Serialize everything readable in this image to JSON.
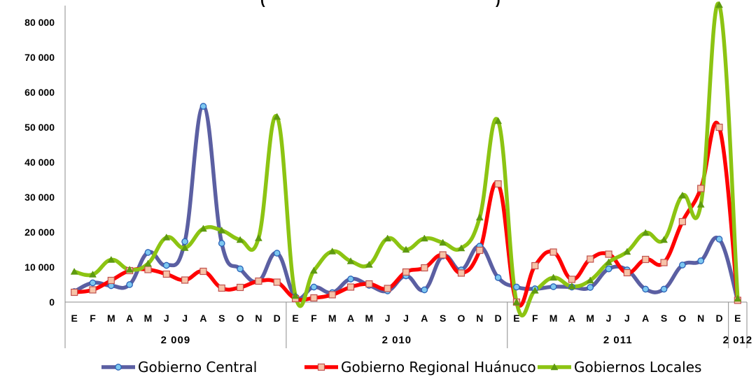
{
  "chart_data": {
    "type": "line",
    "title": "(",
    "title_right": ")",
    "xlabel": "",
    "ylabel": "",
    "ylim": [
      0,
      85000
    ],
    "yticks": [
      0,
      10000,
      20000,
      30000,
      40000,
      50000,
      60000,
      70000,
      80000
    ],
    "ytick_labels": [
      "0",
      "10 000",
      "20 000",
      "30 000",
      "40 000",
      "50 000",
      "60 000",
      "70 000",
      "80 000"
    ],
    "grid": false,
    "legend_position": "bottom",
    "years": [
      {
        "label": "2 009",
        "months": 12
      },
      {
        "label": "2 010",
        "months": 12
      },
      {
        "label": "2 011",
        "months": 12
      },
      {
        "label": "2 012",
        "months": 1
      }
    ],
    "categories": [
      "E",
      "F",
      "M",
      "A",
      "M",
      "J",
      "J",
      "A",
      "S",
      "O",
      "N",
      "D",
      "E",
      "F",
      "M",
      "A",
      "M",
      "J",
      "J",
      "A",
      "S",
      "O",
      "N",
      "D",
      "E",
      "F",
      "M",
      "A",
      "M",
      "J",
      "J",
      "A",
      "S",
      "O",
      "N",
      "D",
      "E"
    ],
    "series": [
      {
        "name": "Gobierno Central",
        "color": "#5B5FA2",
        "marker": "circle",
        "marker_color": "#7EC8F0",
        "values": [
          3000,
          5500,
          4700,
          5000,
          14200,
          10500,
          17300,
          56000,
          16800,
          9500,
          6000,
          14000,
          1500,
          4300,
          2700,
          6600,
          4800,
          3200,
          7500,
          3500,
          13200,
          9200,
          16000,
          7000,
          4300,
          3800,
          4400,
          4300,
          4200,
          9500,
          9200,
          3700,
          3700,
          10600,
          11800,
          18000,
          500
        ]
      },
      {
        "name": "Gobierno Regional Huánuco",
        "color": "#FF0000",
        "marker": "square",
        "marker_color": "#F7C3A8",
        "values": [
          2800,
          3500,
          6200,
          9000,
          9300,
          8000,
          6300,
          8800,
          4000,
          4200,
          6000,
          5700,
          1000,
          1200,
          2100,
          4300,
          5200,
          3900,
          8600,
          9800,
          13500,
          8300,
          14800,
          33800,
          0,
          10400,
          14300,
          6500,
          12300,
          13700,
          8400,
          12200,
          11300,
          23000,
          32500,
          50000,
          500
        ]
      },
      {
        "name": "Gobiernos Locales",
        "color": "#8CC412",
        "marker": "triangle",
        "marker_color": "#5E9A10",
        "values": [
          8700,
          7900,
          12100,
          9300,
          11000,
          18500,
          15500,
          21000,
          20500,
          17800,
          18300,
          53000,
          1800,
          9000,
          14500,
          11700,
          10700,
          18200,
          15000,
          18200,
          17000,
          15400,
          24200,
          51800,
          0,
          3300,
          7000,
          4500,
          6200,
          11400,
          14400,
          19800,
          17800,
          30500,
          27900,
          85000,
          1000
        ]
      }
    ]
  }
}
